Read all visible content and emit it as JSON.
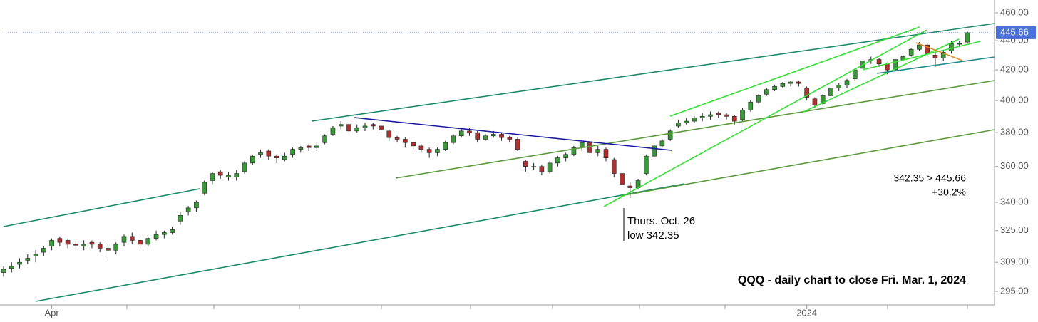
{
  "chart_data": {
    "type": "candlestick",
    "title": "QQQ - daily chart to close Fri. Mar. 1, 2024",
    "annotations": [
      "Thurs. Oct. 26",
      "low 342.35",
      "342.35 > 445.66",
      "+30.2%"
    ],
    "log_scale": true,
    "up_color": "#3a9a3a",
    "down_color": "#b03030",
    "last_price": 445.66,
    "categories": [
      null,
      null,
      null,
      null,
      null,
      null,
      "Apr",
      null,
      null,
      null,
      null,
      null,
      null,
      null,
      null,
      null,
      null,
      null,
      null,
      null,
      null,
      null,
      null,
      null,
      null,
      null,
      null,
      null,
      null,
      null,
      null,
      null,
      null,
      null,
      null,
      null,
      null,
      null,
      null,
      null,
      null,
      null,
      null,
      null,
      null,
      null,
      null,
      null,
      null,
      null,
      null,
      null,
      null,
      null,
      null,
      null,
      null,
      null,
      null,
      null,
      null,
      null,
      null,
      null,
      null,
      null,
      null,
      null,
      null,
      null,
      null,
      null,
      null,
      null,
      null,
      null,
      null,
      null,
      null,
      null,
      null,
      null,
      null,
      null,
      null,
      null,
      null,
      null,
      null,
      null,
      null,
      null,
      null,
      null,
      null,
      null,
      null,
      null,
      null,
      null,
      "2024",
      null,
      null,
      null,
      null,
      null,
      null,
      null,
      null,
      null,
      null,
      null,
      null,
      null,
      null,
      null,
      null,
      null,
      null,
      null,
      null
    ],
    "open": [
      304,
      306,
      308,
      310,
      312,
      314,
      317,
      321,
      320,
      318,
      317,
      319,
      318,
      316,
      315,
      319,
      322,
      320,
      318,
      321,
      323,
      324,
      330,
      335,
      337,
      345,
      352,
      357,
      354,
      354,
      357,
      362,
      367,
      369,
      366,
      364,
      367,
      370,
      372,
      371,
      374,
      379,
      384,
      385,
      381,
      383,
      385,
      384,
      381,
      377,
      376,
      374,
      372,
      370,
      368,
      370,
      374,
      378,
      381,
      380,
      376,
      378,
      379,
      377,
      376,
      363,
      360,
      360,
      357,
      362,
      365,
      367,
      371,
      374,
      368,
      370,
      364,
      356,
      349,
      348,
      356,
      366,
      372,
      376,
      384,
      386,
      387,
      389,
      390,
      392,
      391,
      390,
      388,
      394,
      399,
      404,
      407,
      409,
      411,
      412,
      408,
      401,
      398,
      403,
      408,
      410,
      414,
      421,
      426,
      427,
      424,
      420,
      427,
      430,
      434,
      437,
      430,
      428,
      433,
      437.5,
      439
    ],
    "high": [
      307,
      309,
      311,
      313,
      315,
      317,
      321,
      322,
      321,
      320,
      320,
      320,
      319,
      318,
      319,
      323,
      324,
      321,
      322,
      325,
      325,
      327,
      335,
      338,
      341,
      352,
      357,
      358,
      357,
      358,
      363,
      367,
      370,
      370,
      367,
      368,
      371,
      372,
      373,
      374,
      379,
      384,
      387,
      386,
      385,
      386,
      386,
      385,
      382,
      378,
      377,
      376,
      373,
      371,
      371,
      375,
      379,
      382,
      383,
      381,
      379,
      381,
      380,
      378,
      377,
      364,
      362,
      361,
      363,
      366,
      368,
      372,
      375,
      375,
      372,
      371,
      365,
      357,
      351,
      353,
      367,
      373,
      376,
      382,
      388,
      389,
      390,
      392,
      393,
      393,
      392,
      391,
      395,
      400,
      404,
      408,
      410,
      412,
      413,
      413,
      409,
      402,
      404,
      409,
      411,
      414,
      421,
      427,
      429,
      428,
      425,
      428,
      430,
      435,
      439,
      438,
      432,
      433,
      440,
      440,
      446.5
    ],
    "low": [
      302,
      304,
      306,
      308,
      309,
      312,
      315,
      317,
      316,
      316,
      315,
      316,
      314,
      311,
      313,
      317,
      318,
      316,
      317,
      320,
      321,
      323,
      328,
      333,
      335,
      344,
      350,
      353,
      352,
      352,
      356,
      361,
      365,
      364,
      362,
      363,
      365,
      368,
      369,
      369,
      373,
      378,
      382,
      379,
      380,
      381,
      382,
      380,
      375,
      374,
      371,
      370,
      368,
      365,
      366,
      369,
      373,
      377,
      378,
      374,
      375,
      377,
      375,
      374,
      369,
      357,
      358,
      355,
      356,
      360,
      363,
      366,
      369,
      366,
      366,
      363,
      354,
      348,
      342.35,
      347,
      355,
      365,
      371,
      375,
      383,
      385,
      386,
      387,
      388,
      389,
      388,
      385,
      387,
      393,
      398,
      403,
      406,
      408,
      409,
      409,
      400,
      395,
      397,
      402,
      406,
      408,
      413,
      420,
      424,
      422,
      417,
      419,
      426,
      429,
      433,
      429,
      422,
      426,
      431,
      436,
      438
    ],
    "close": [
      305.6,
      307,
      309,
      311,
      313,
      316,
      320,
      319,
      318,
      317.5,
      318,
      318,
      316,
      315,
      318,
      322,
      320,
      318,
      321,
      323,
      324,
      325.5,
      333,
      337,
      340,
      351,
      356,
      355,
      355,
      356,
      362,
      366,
      368,
      366,
      365,
      366,
      370,
      371,
      371,
      372,
      378,
      383,
      385,
      381,
      383,
      384,
      384,
      382,
      377,
      376,
      374,
      372,
      370,
      368,
      370,
      374,
      378,
      381,
      380,
      376,
      378,
      379,
      377,
      376,
      370,
      360,
      360,
      357,
      362,
      365,
      367,
      371,
      374,
      368,
      370,
      365,
      356,
      350,
      348,
      352,
      366,
      372,
      375,
      381,
      386,
      387,
      389,
      390,
      391,
      391,
      390,
      387,
      394,
      399,
      403,
      407,
      409,
      411,
      412,
      411,
      402,
      397,
      403,
      408,
      410,
      413,
      420,
      426,
      427,
      424,
      420,
      427,
      429,
      434,
      437,
      431,
      428,
      432,
      438,
      438,
      445.66
    ],
    "ylim": [
      288.7,
      469.5
    ],
    "yticks": [
      {
        "value": 295,
        "label": "295.00"
      },
      {
        "value": 309,
        "label": "309.00"
      },
      {
        "value": 325,
        "label": "325.00"
      },
      {
        "value": 340,
        "label": "340.00"
      },
      {
        "value": 360,
        "label": "360.00"
      },
      {
        "value": 380,
        "label": "380.00"
      },
      {
        "value": 400,
        "label": "400.00"
      },
      {
        "value": 420,
        "label": "420.00"
      },
      {
        "value": 440,
        "label": "440.00"
      },
      {
        "value": 460,
        "label": "460.00"
      }
    ]
  }
}
